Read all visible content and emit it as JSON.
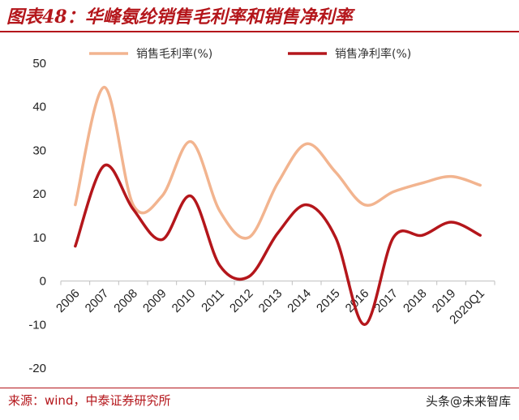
{
  "header": {
    "title": "图表48：华峰氨纶销售毛利率和销售净利率"
  },
  "footer": {
    "source": "来源：wind，中泰证券研究所",
    "watermark": "头条@未来智库"
  },
  "colors": {
    "gross": "#f2b48f",
    "net": "#b4161b",
    "accent": "#b4161b"
  },
  "chart_data": {
    "type": "line",
    "categories": [
      "2006",
      "2007",
      "2008",
      "2009",
      "2010",
      "2011",
      "2012",
      "2013",
      "2014",
      "2015",
      "2016",
      "2017",
      "2018",
      "2019",
      "2020Q1"
    ],
    "series": [
      {
        "name": "销售毛利率(%)",
        "values": [
          17.5,
          44.5,
          17.5,
          19.5,
          32,
          16,
          10,
          22.5,
          31.5,
          25,
          17.5,
          20.5,
          22.5,
          24,
          22
        ]
      },
      {
        "name": "销售净利率(%)",
        "values": [
          8,
          26.5,
          16.5,
          9.5,
          19.5,
          3.5,
          1,
          11,
          17.5,
          10,
          -10,
          10,
          10.5,
          13.5,
          10.5
        ]
      }
    ],
    "ylim": [
      -20,
      50
    ],
    "yticks": [
      -20,
      -10,
      0,
      10,
      20,
      30,
      40,
      50
    ],
    "xlabel": "",
    "ylabel": "",
    "legend": "top"
  }
}
